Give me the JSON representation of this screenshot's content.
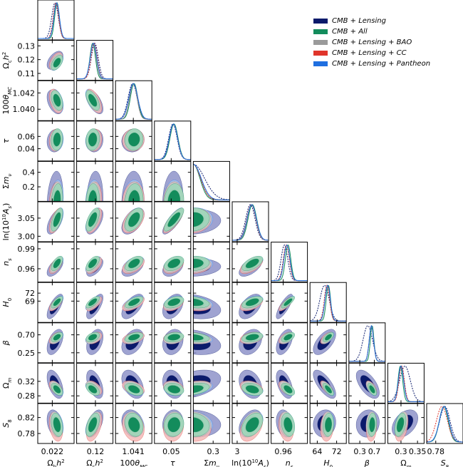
{
  "chart_data": {
    "type": "corner",
    "title": "",
    "legend_placement": "top-right",
    "datasets": [
      {
        "name": "CMB + Lensing",
        "color": "#0b1a6b",
        "fill_outer": "#8e93c9",
        "fill_inner": "#0b1a6b",
        "linestyle": "dashed"
      },
      {
        "name": "CMB + All",
        "color": "#138c5c",
        "fill_outer": "#9bd7b9",
        "fill_inner": "#138c5c",
        "linestyle": "solid"
      },
      {
        "name": "CMB + Lensing + BAO",
        "color": "#8f8f8f",
        "fill_outer": "#c7c7c7",
        "fill_inner": "#9a9a9a",
        "linestyle": "solid"
      },
      {
        "name": "CMB + Lensing + CC",
        "color": "#e0352b",
        "fill_outer": "#f3b9b7",
        "fill_inner": "#e88a85",
        "linestyle": "dashed"
      },
      {
        "name": "CMB + Lensing + Pantheon",
        "color": "#1f6fe0",
        "fill_outer": "#a9c7f0",
        "fill_inner": "#6f9fe6",
        "linestyle": "solid"
      }
    ],
    "parameters": [
      {
        "label_html": "Ω<tspan baseline-shift='sub' font-size='7'>b</tspan><tspan font-style='italic'>h</tspan><tspan baseline-shift='super' font-size='7'>2</tspan>",
        "xlabel": "Ωbh²",
        "range": [
          0.0212,
          0.0232
        ],
        "xticks": [
          "0.022"
        ],
        "xtick_values": [
          0.022
        ],
        "yticks": [],
        "ytick_values": [],
        "mean": [
          0.02215,
          0.02226,
          0.02222,
          0.0222,
          0.02224
        ],
        "sigma": [
          0.00018,
          0.00013,
          0.00014,
          0.00015,
          0.00015
        ]
      },
      {
        "label_html": "Ω<tspan baseline-shift='sub' font-size='7'>c</tspan><tspan font-style='italic'>h</tspan><tspan baseline-shift='super' font-size='7'>2</tspan>",
        "xlabel": "Ωch²",
        "range": [
          0.105,
          0.134
        ],
        "xticks": [
          "0.12"
        ],
        "xtick_values": [
          0.12
        ],
        "yticks": [
          "0.13",
          "0.12",
          "0.11"
        ],
        "ytick_values": [
          0.13,
          0.12,
          0.11
        ],
        "mean": [
          0.1195,
          0.1178,
          0.1182,
          0.119,
          0.1185
        ],
        "sigma": [
          0.0027,
          0.0022,
          0.0024,
          0.0025,
          0.0026
        ]
      },
      {
        "label_html": "100<tspan font-style='italic'>θ</tspan><tspan baseline-shift='sub' font-size='7' font-style='italic'>MC</tspan>",
        "xlabel": "100θMC",
        "range": [
          1.0386,
          1.0435
        ],
        "xticks": [
          "1.041"
        ],
        "xtick_values": [
          1.041
        ],
        "yticks": [
          "1.042",
          "1.040"
        ],
        "ytick_values": [
          1.042,
          1.04
        ],
        "mean": [
          1.0409,
          1.0411,
          1.041,
          1.041,
          1.041
        ],
        "sigma": [
          0.0006,
          0.0005,
          0.0005,
          0.0006,
          0.0006
        ]
      },
      {
        "label_html": "<tspan font-style='italic'>τ</tspan>",
        "xlabel": "τ",
        "range": [
          0.02,
          0.085
        ],
        "xticks": [
          "0.05"
        ],
        "xtick_values": [
          0.05
        ],
        "yticks": [
          "0.06",
          "0.04"
        ],
        "ytick_values": [
          0.06,
          0.04
        ],
        "mean": [
          0.053,
          0.055,
          0.054,
          0.054,
          0.054
        ],
        "sigma": [
          0.0075,
          0.0072,
          0.0073,
          0.0074,
          0.0074
        ]
      },
      {
        "label_html": "Σ<tspan font-style='italic'>m</tspan><tspan baseline-shift='sub' font-size='7' font-style='italic'>ν</tspan>",
        "xlabel": "Σmν",
        "range": [
          0.0,
          0.55
        ],
        "xticks": [
          "0.3"
        ],
        "xtick_values": [
          0.3
        ],
        "yticks": [
          "0.4",
          "0.2"
        ],
        "ytick_values": [
          0.4,
          0.2
        ],
        "mean": [
          0.0,
          0.0,
          0.0,
          0.0,
          0.0
        ],
        "sigma": [
          0.17,
          0.1,
          0.11,
          0.11,
          0.12
        ]
      },
      {
        "label_html": "ln(10<tspan baseline-shift='super' font-size='7'>10</tspan><tspan font-style='italic'>A</tspan><tspan baseline-shift='sub' font-size='7' font-style='italic'>s</tspan>)",
        "xlabel": "ln(10¹⁰As)",
        "range": [
          2.985,
          3.095
        ],
        "xticks": [
          "3"
        ],
        "xtick_values": [
          3.0
        ],
        "yticks": [
          "3.05",
          "3.00"
        ],
        "ytick_values": [
          3.05,
          3.0
        ],
        "mean": [
          3.04,
          3.046,
          3.044,
          3.043,
          3.044
        ],
        "sigma": [
          0.014,
          0.013,
          0.013,
          0.014,
          0.014
        ]
      },
      {
        "label_html": "<tspan font-style='italic'>n</tspan><tspan baseline-shift='sub' font-size='7' font-style='italic'>s</tspan>",
        "xlabel": "ns",
        "range": [
          0.94,
          1.0
        ],
        "xticks": [
          "0.96"
        ],
        "xtick_values": [
          0.96
        ],
        "yticks": [
          "0.99",
          "0.96"
        ],
        "ytick_values": [
          0.99,
          0.96
        ],
        "mean": [
          0.962,
          0.968,
          0.966,
          0.965,
          0.966
        ],
        "sigma": [
          0.0055,
          0.0045,
          0.0048,
          0.005,
          0.005
        ]
      },
      {
        "label_html": "<tspan font-style='italic'>H</tspan><tspan baseline-shift='sub' font-size='7'>0</tspan>",
        "xlabel": "H0",
        "range": [
          61,
          76
        ],
        "xticks": [
          "64",
          "72"
        ],
        "xtick_values": [
          64,
          72
        ],
        "yticks": [
          "72",
          "69"
        ],
        "ytick_values": [
          72,
          69
        ],
        "mean": [
          67.0,
          68.6,
          68.2,
          68.0,
          68.3
        ],
        "sigma": [
          1.9,
          0.9,
          1.0,
          1.1,
          1.1
        ]
      },
      {
        "label_html": "<tspan font-style='italic'>β</tspan>",
        "xlabel": "β",
        "range": [
          0.0,
          1.0
        ],
        "xticks": [
          "0.3",
          "0.7"
        ],
        "xtick_values": [
          0.3,
          0.7
        ],
        "yticks": [
          "0.70",
          "0.25"
        ],
        "ytick_values": [
          0.7,
          0.25
        ],
        "mean": [
          0.52,
          0.64,
          0.62,
          0.62,
          0.62
        ],
        "sigma": [
          0.13,
          0.05,
          0.06,
          0.06,
          0.06
        ]
      },
      {
        "label_html": "Ω<tspan baseline-shift='sub' font-size='7' font-style='italic'>m</tspan>",
        "xlabel": "Ωm",
        "range": [
          0.26,
          0.37
        ],
        "xticks": [
          "0.3",
          "0.35"
        ],
        "xtick_values": [
          0.3,
          0.35
        ],
        "yticks": [
          "0.32",
          "0.28"
        ],
        "ytick_values": [
          0.32,
          0.28
        ],
        "mean": [
          0.312,
          0.298,
          0.301,
          0.302,
          0.3
        ],
        "sigma": [
          0.016,
          0.007,
          0.008,
          0.008,
          0.008
        ]
      },
      {
        "label_html": "<tspan font-style='italic'>S</tspan><tspan baseline-shift='sub' font-size='7'>8</tspan>",
        "xlabel": "S8",
        "range": [
          0.755,
          0.855
        ],
        "xticks": [
          "0.78"
        ],
        "xtick_values": [
          0.78
        ],
        "yticks": [
          "0.82",
          "0.78"
        ],
        "ytick_values": [
          0.82,
          0.78
        ],
        "mean": [
          0.805,
          0.802,
          0.803,
          0.797,
          0.803
        ],
        "sigma": [
          0.014,
          0.012,
          0.013,
          0.015,
          0.013
        ]
      }
    ],
    "correlations_note": "approximate pairwise correlation coefficients used for 2D contours",
    "correlations": [
      [
        1,
        0.5,
        -0.4,
        0.1,
        0.2,
        0.6,
        0.6,
        0.7,
        0.5,
        -0.5,
        -0.3
      ],
      [
        0.5,
        1,
        -0.6,
        0.1,
        0.1,
        0.6,
        0.6,
        0.7,
        0.4,
        -0.5,
        0.5
      ],
      [
        -0.4,
        -0.6,
        1,
        0.05,
        0.1,
        0.5,
        0.5,
        0.6,
        0.4,
        -0.4,
        -0.2
      ],
      [
        0.1,
        0.1,
        0.05,
        1,
        0.1,
        0.8,
        0.4,
        0.4,
        0.2,
        -0.2,
        0.1
      ],
      [
        0.2,
        0.1,
        0.1,
        0.1,
        1,
        0.1,
        0.1,
        -0.3,
        -0.3,
        0.4,
        -0.1
      ],
      [
        0.6,
        0.6,
        0.5,
        0.8,
        0.1,
        1,
        0.6,
        0.5,
        0.3,
        -0.3,
        0.4
      ],
      [
        0.6,
        0.6,
        0.5,
        0.4,
        0.1,
        0.6,
        1,
        0.8,
        0.5,
        -0.5,
        -0.2
      ],
      [
        0.7,
        0.7,
        0.6,
        0.4,
        -0.3,
        0.5,
        0.8,
        1,
        0.6,
        -0.7,
        0.1
      ],
      [
        0.5,
        0.4,
        0.4,
        0.2,
        -0.3,
        0.3,
        0.5,
        0.6,
        1,
        -0.6,
        0.1
      ],
      [
        -0.5,
        -0.5,
        -0.4,
        -0.2,
        0.4,
        -0.3,
        -0.5,
        -0.7,
        -0.6,
        1,
        0.4
      ],
      [
        -0.3,
        0.5,
        -0.2,
        0.1,
        -0.1,
        0.4,
        -0.2,
        0.1,
        0.1,
        0.4,
        1
      ]
    ]
  },
  "legend": {
    "items": [
      {
        "label": "CMB + Lensing",
        "color": "#0b1a6b"
      },
      {
        "label": "CMB + All",
        "color": "#138c5c"
      },
      {
        "label": "CMB + Lensing + BAO",
        "color": "#9a9a9a"
      },
      {
        "label": "CMB + Lensing + CC",
        "color": "#e0352b"
      },
      {
        "label": "CMB + Lensing + Pantheon",
        "color": "#1f6fe0"
      }
    ]
  }
}
